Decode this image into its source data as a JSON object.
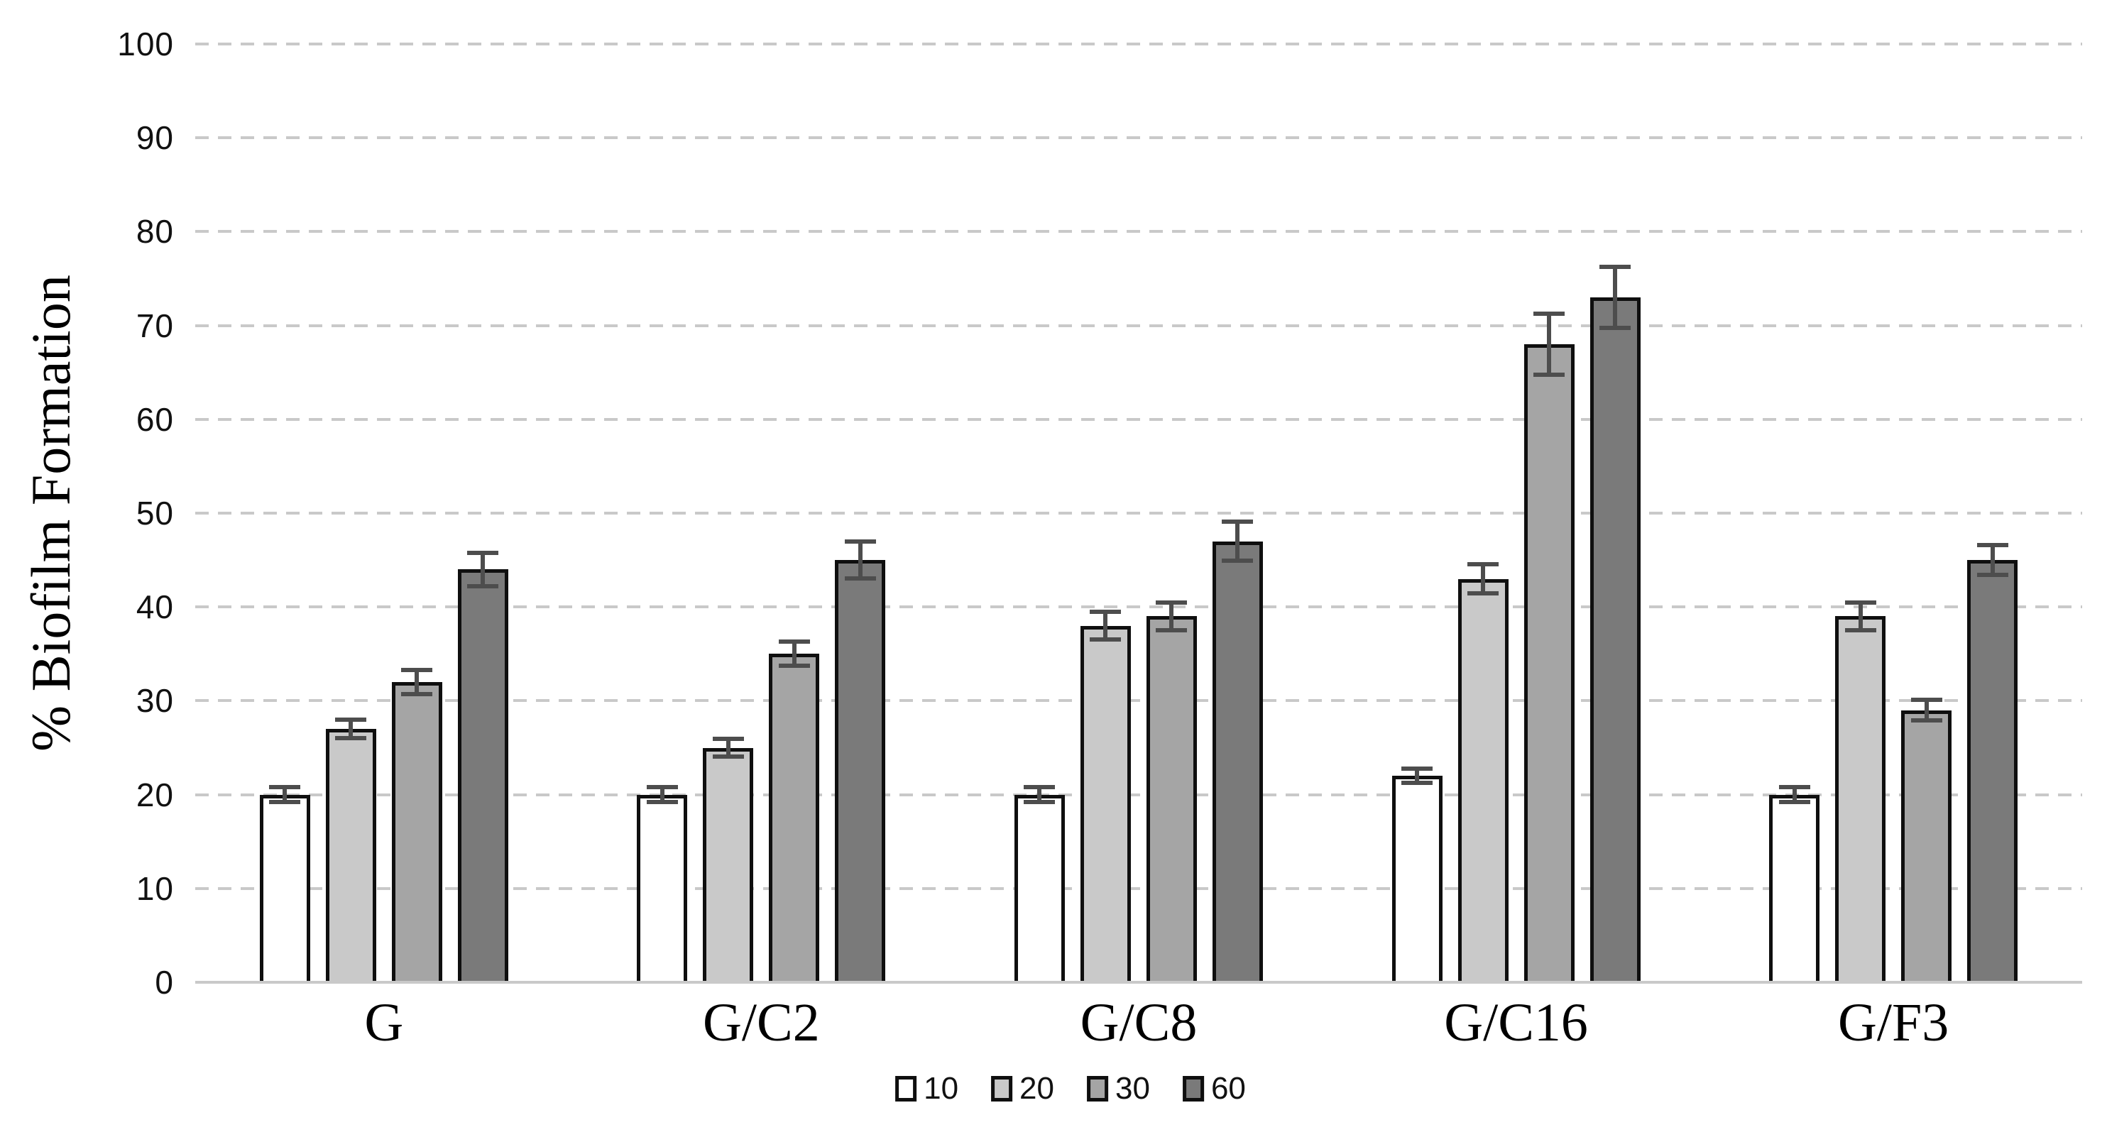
{
  "figure": {
    "background": "#ffffff"
  },
  "chart_data": {
    "type": "bar",
    "title": "",
    "xlabel": "",
    "ylabel": "% Biofilm Formation",
    "ylim": [
      0,
      100
    ],
    "yticks": [
      0,
      10,
      20,
      30,
      40,
      50,
      60,
      70,
      80,
      90,
      100
    ],
    "grid": "horizontal dashed, gridlines at every 10 from 10 to 100",
    "legend_position": "bottom-center",
    "categories": [
      "G",
      "G/C2",
      "G/C8",
      "G/C16",
      "G/F3"
    ],
    "series": [
      {
        "name": "10",
        "fill": "#ffffff",
        "values": [
          20,
          20,
          20,
          22,
          20
        ],
        "errors": [
          1.0,
          1.0,
          1.0,
          1.0,
          1.0
        ]
      },
      {
        "name": "20",
        "fill": "#c9c9c9",
        "values": [
          27,
          25,
          38,
          43,
          39
        ],
        "errors": [
          1.2,
          1.2,
          1.7,
          1.8,
          1.7
        ]
      },
      {
        "name": "30",
        "fill": "#a5a5a5",
        "values": [
          32,
          35,
          39,
          68,
          29
        ],
        "errors": [
          1.5,
          1.5,
          1.7,
          3.5,
          1.3
        ]
      },
      {
        "name": "60",
        "fill": "#7a7a7a",
        "values": [
          44,
          45,
          47,
          73,
          45
        ],
        "errors": [
          2.0,
          2.2,
          2.3,
          3.5,
          1.8
        ]
      }
    ],
    "bar_border_color": "#0f0f0f",
    "error_bar_color": "#4d4d4d",
    "gridline_color": "#c9c9c9",
    "axis_line_color": "#c9c9c9",
    "tick_label_color": "#111111"
  }
}
